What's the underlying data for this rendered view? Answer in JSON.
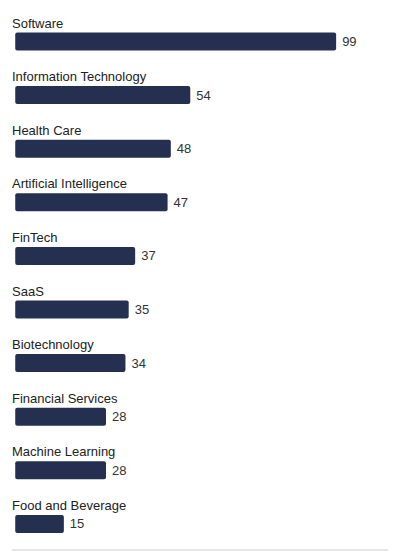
{
  "chart_data": {
    "type": "bar",
    "orientation": "horizontal",
    "categories": [
      "Software",
      "Information Technology",
      "Health Care",
      "Artificial Intelligence",
      "FinTech",
      "SaaS",
      "Biotechnology",
      "Financial Services",
      "Machine Learning",
      "Food and Beverage"
    ],
    "values": [
      99,
      54,
      48,
      47,
      37,
      35,
      34,
      28,
      28,
      15
    ],
    "color": "#253050",
    "xlim": [
      -1,
      115
    ],
    "data_labels": true,
    "tick_labels": false,
    "grid": false
  }
}
